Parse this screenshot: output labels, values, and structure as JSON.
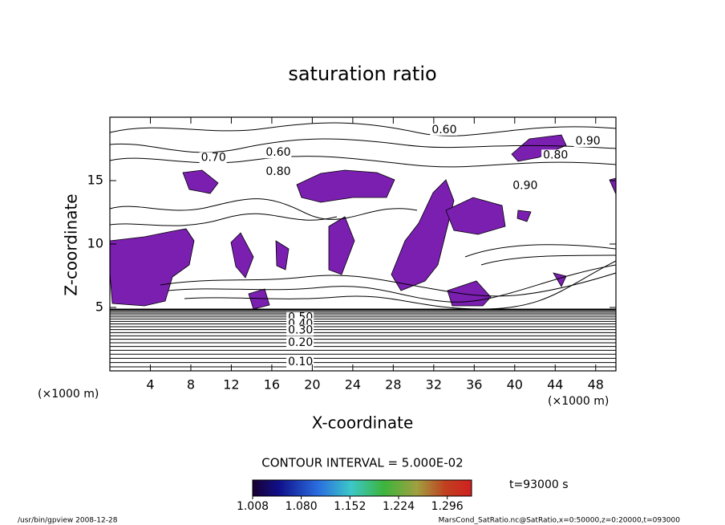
{
  "chart_data": {
    "type": "contour",
    "title": "saturation ratio",
    "x_label": "X-coordinate",
    "y_label": "Z-coordinate",
    "x_unit": "(×1000 m)",
    "xlim": [
      0,
      50
    ],
    "ylim": [
      0,
      20
    ],
    "xticks": [
      4,
      8,
      12,
      16,
      20,
      24,
      28,
      32,
      36,
      40,
      44,
      48
    ],
    "yticks": [
      5,
      10,
      15
    ],
    "contour_interval": "CONTOUR INTERVAL = 5.000E-02",
    "contour_labels": [
      {
        "text": "0.60",
        "x": 31.8,
        "y": 19.0
      },
      {
        "text": "0.70",
        "x": 9.0,
        "y": 16.8
      },
      {
        "text": "0.60",
        "x": 15.4,
        "y": 17.2
      },
      {
        "text": "0.80",
        "x": 15.4,
        "y": 15.7
      },
      {
        "text": "0.80",
        "x": 42.8,
        "y": 17.0
      },
      {
        "text": "0.90",
        "x": 46.0,
        "y": 18.1
      },
      {
        "text": "0.90",
        "x": 39.8,
        "y": 14.6
      },
      {
        "text": "0.50",
        "x": 17.6,
        "y": 4.2
      },
      {
        "text": "0.40",
        "x": 17.6,
        "y": 3.7
      },
      {
        "text": "0.30",
        "x": 17.6,
        "y": 3.2
      },
      {
        "text": "0.20",
        "x": 17.6,
        "y": 2.2
      },
      {
        "text": "0.10",
        "x": 17.6,
        "y": 0.7
      }
    ],
    "fill_color": "#7a1fb0",
    "colorbar": {
      "lim": [
        1.008,
        1.332
      ],
      "ticks": [
        1.008,
        {
          "value": 1.08,
          "label": "1.080"
        },
        1.152,
        1.224,
        1.296
      ]
    },
    "time_label": "t=93000 s",
    "footer_left": "/usr/bin/gpview   2008-12-28",
    "footer_right": "MarsCond_SatRatio.nc@SatRatio,x=0:50000,z=0:20000,t=093000"
  }
}
